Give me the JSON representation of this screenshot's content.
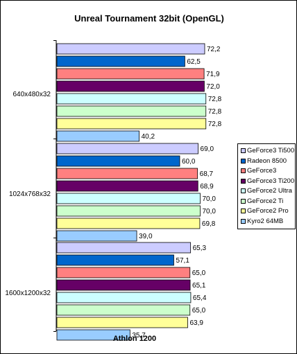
{
  "chart_data": {
    "type": "bar",
    "orientation": "horizontal",
    "title": "Unreal Tournament 32bit (OpenGL)",
    "xlabel": "Athlon 1200",
    "ylabel": "",
    "xlim": [
      0,
      80
    ],
    "grid": false,
    "legend_position": "right",
    "categories": [
      "640x480x32",
      "1024x768x32",
      "1600x1200x32"
    ],
    "series": [
      {
        "name": "GeForce3 Ti500",
        "color": "#ccccff",
        "values": [
          72.2,
          69.0,
          65.3
        ],
        "labels": [
          "72,2",
          "69,0",
          "65,3"
        ]
      },
      {
        "name": "Radeon 8500",
        "color": "#0066cc",
        "values": [
          62.5,
          60.0,
          57.1
        ],
        "labels": [
          "62,5",
          "60,0",
          "57,1"
        ]
      },
      {
        "name": "GeForce3",
        "color": "#ff8080",
        "values": [
          71.9,
          68.7,
          65.0
        ],
        "labels": [
          "71,9",
          "68,7",
          "65,0"
        ]
      },
      {
        "name": "GeForce3 Ti200",
        "color": "#660066",
        "values": [
          72.0,
          68.9,
          65.1
        ],
        "labels": [
          "72,0",
          "68,9",
          "65,1"
        ]
      },
      {
        "name": "GeForce2 Ultra",
        "color": "#ccffff",
        "values": [
          72.8,
          70.0,
          65.4
        ],
        "labels": [
          "72,8",
          "70,0",
          "65,4"
        ]
      },
      {
        "name": "GeForce2 Ti",
        "color": "#ccffcc",
        "values": [
          72.8,
          70.0,
          65.0
        ],
        "labels": [
          "72,8",
          "70,0",
          "65,0"
        ]
      },
      {
        "name": "GeForce2 Pro",
        "color": "#ffff99",
        "values": [
          72.8,
          69.8,
          63.9
        ],
        "labels": [
          "72,8",
          "69,8",
          "63,9"
        ]
      },
      {
        "name": "Kyro2 64MB",
        "color": "#99ccff",
        "values": [
          40.2,
          39.0,
          35.7
        ],
        "labels": [
          "40,2",
          "39,0",
          "35,7"
        ]
      }
    ]
  }
}
